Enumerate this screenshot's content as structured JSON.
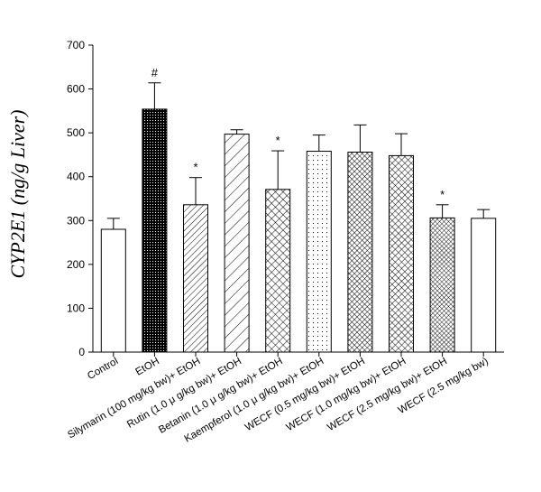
{
  "chart_data": {
    "type": "bar",
    "title": "",
    "xlabel": "",
    "ylabel": "CYP2E1 (ng/g Liver)",
    "ylim": [
      0,
      700
    ],
    "yticks": [
      "0",
      "100",
      "200",
      "300",
      "400",
      "500",
      "600",
      "700"
    ],
    "grid": false,
    "legend": "none",
    "categories": [
      "Control",
      "EtOH",
      "Silymarin (100 mg/kg bw)+ EtOH",
      "Rutin (1.0 μ g/kg bw)+ EtOH",
      "Betanin (1.0 μ g/kg bw)+ EtOH",
      "Kaempferol (1.0 μ g/kg bw)+ EtOH",
      "WECF (0.5 mg/kg bw)+ EtOH",
      "WECF (1.0 mg/kg bw)+ EtOH",
      "WECF (2.5 mg/kg bw)+ EtOH",
      "WECF (2.5 mg/kg bw)"
    ],
    "values": [
      280,
      554,
      336,
      497,
      371,
      458,
      456,
      448,
      306,
      305
    ],
    "errors": [
      25,
      60,
      62,
      10,
      88,
      37,
      62,
      50,
      30,
      20
    ],
    "patterns": [
      "empty",
      "dots-dense",
      "diag-fwd",
      "diag-fwd-wide",
      "crosshatch",
      "dots-sparse",
      "grid-dense",
      "grid-medium",
      "grid-fine",
      "empty"
    ],
    "annotations": [
      "",
      "#",
      "*",
      "",
      "*",
      "",
      "",
      "",
      "*",
      ""
    ]
  }
}
